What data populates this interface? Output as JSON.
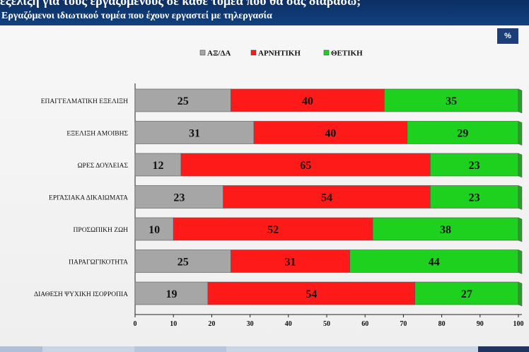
{
  "header": {
    "title": "εξέλιξη για τους εργαζόμενους σε κάθε τομέα που θα σας διαβάσω;",
    "subtitle": "Εργαζόμενοι ιδιωτικού τομέα που έχουν εργαστεί με τηλεργασία"
  },
  "badge": "%",
  "colors": {
    "header_bg": "#12417f",
    "grey": "#a6a6a6",
    "red": "#ff1a1a",
    "green": "#1fd11f",
    "depth": "#2b9b2b"
  },
  "chart_data": {
    "type": "bar",
    "orientation": "horizontal",
    "stacked": true,
    "categories": [
      "ΕΠΑΓΓΕΛΜΑΤΙΚΗ ΕΞΕΛΙΞΗ",
      "ΕΞΕΛΙΞΗ ΑΜΟΙΒΗΣ",
      "ΩΡΕΣ ΔΟΥΛΕΙΑΣ",
      "ΕΡΓΑΣΙΑΚΑ ΔΙΚΑΙΩΜΑΤΑ",
      "ΠΡΟΣΩΠΙΚΗ ΖΩΗ",
      "ΠΑΡΑΓΩΓΙΚΟΤΗΤΑ",
      "ΔΙΑΘΕΣΗ ΨΥΧΙΚΗ ΙΣΟΡΡΟΠΙΑ"
    ],
    "series": [
      {
        "name": "ΑΞ/ΔΑ",
        "color": "#a6a6a6",
        "values": [
          25,
          31,
          12,
          23,
          10,
          25,
          19
        ]
      },
      {
        "name": "ΑΡΝΗΤΙΚΗ",
        "color": "#ff1a1a",
        "values": [
          40,
          40,
          65,
          54,
          52,
          31,
          54
        ]
      },
      {
        "name": "ΘΕΤΙΚΗ",
        "color": "#1fd11f",
        "values": [
          35,
          29,
          23,
          23,
          38,
          44,
          27
        ]
      }
    ],
    "xlim": [
      0,
      100
    ],
    "xticks": [
      0,
      10,
      20,
      30,
      40,
      50,
      60,
      70,
      80,
      90,
      100
    ],
    "legend_position": "top",
    "grid": false
  }
}
